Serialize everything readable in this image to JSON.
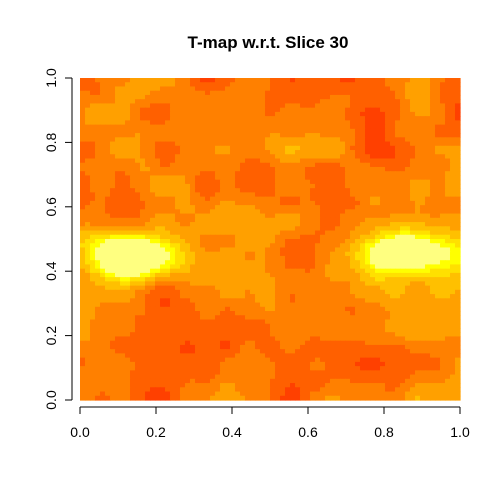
{
  "chart_data": {
    "type": "heatmap",
    "title": "T-map w.r.t. Slice 30",
    "xlabel": "",
    "ylabel": "",
    "xlim": [
      0,
      1
    ],
    "ylim": [
      0,
      1
    ],
    "x_ticks": [
      "0.0",
      "0.2",
      "0.4",
      "0.6",
      "0.8",
      "1.0"
    ],
    "y_ticks": [
      "0.0",
      "0.2",
      "0.4",
      "0.6",
      "0.8",
      "1.0"
    ],
    "grid": false,
    "legend": "none",
    "colormap": "heat",
    "colors": [
      "#FF0000",
      "#FF2000",
      "#FF4000",
      "#FF6000",
      "#FF8000",
      "#FFA000",
      "#FFC000",
      "#FFE000",
      "#FFFF00",
      "#FFFF80"
    ],
    "hotspots": [
      {
        "x": 0.13,
        "y": 0.45,
        "level": 1.0
      },
      {
        "x": 0.86,
        "y": 0.46,
        "level": 1.0
      }
    ]
  }
}
